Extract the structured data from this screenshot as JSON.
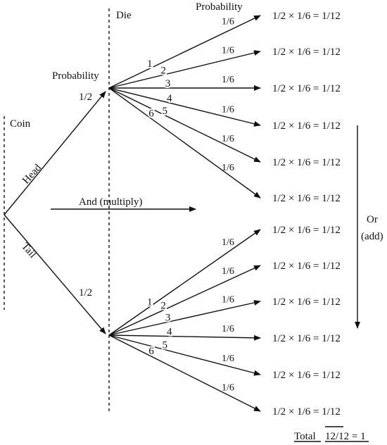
{
  "labels": {
    "die": "Die",
    "coin": "Coin",
    "probability_top": "Probability",
    "probability_die": "Probability",
    "head": "Head",
    "tail": "Tail",
    "coin_prob_head": "1/2",
    "coin_prob_tail": "1/2",
    "and_multiply": "And (multiply)",
    "or": "Or",
    "add": "(add)",
    "total_word": "Total",
    "total_value": "12/12 = 1"
  },
  "faces": [
    "1",
    "2",
    "3",
    "4",
    "5",
    "6"
  ],
  "die_prob": "1/6",
  "outcome": "1/2 × 1/6 = 1/12"
}
